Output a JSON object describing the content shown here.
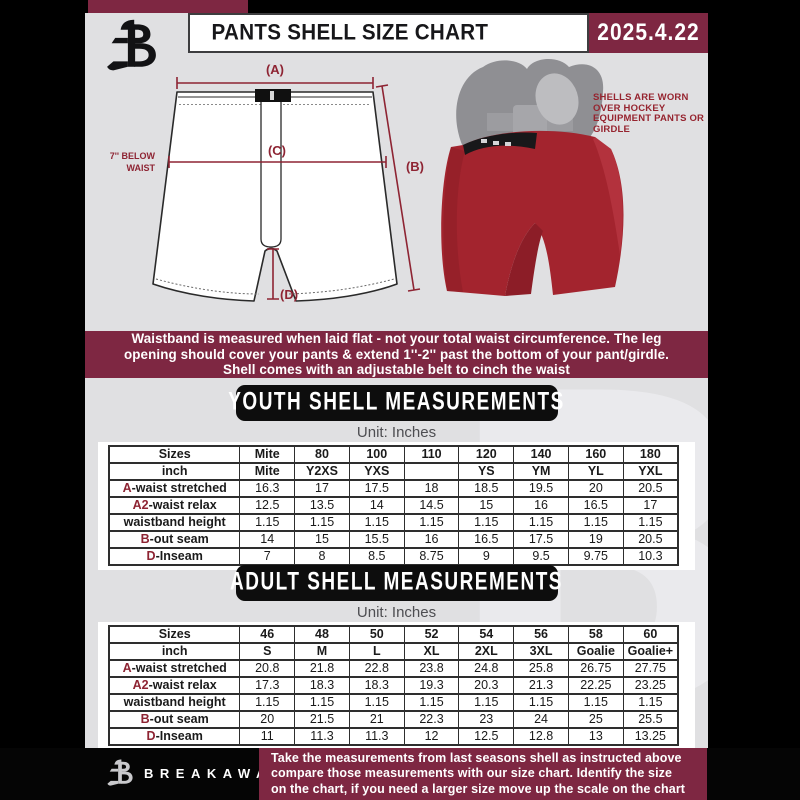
{
  "colors": {
    "maroon": "#7E2742",
    "accent_red": "#8E2433",
    "panel_gray": "#E0E0E2",
    "banner_black": "#0D0D0D",
    "shell_red": "#A3242E"
  },
  "header": {
    "title": "PANTS SHELL SIZE CHART",
    "date": "2025.4.22",
    "logo": "breakaway-b-logo"
  },
  "diagram": {
    "label_a": "(A)",
    "label_b": "(B)",
    "label_c": "(C)",
    "label_d": "(D)",
    "waist_note_line1": "7'' BELOW",
    "waist_note_line2": "WAIST"
  },
  "photo": {
    "caption": "SHELLS ARE WORN OVER HOCKEY EQUIPMENT PANTS OR GIRDLE"
  },
  "note_banner": {
    "line1": "Waistband is measured when laid flat - not your total waist circumference. The leg",
    "line2": "opening should cover your pants & extend 1''-2'' past the bottom of your pant/girdle.",
    "line3": "Shell comes with an adjustable belt to cinch the waist"
  },
  "youth": {
    "heading": "YOUTH SHELL MEASUREMENTS",
    "unit": "Unit: Inches",
    "rows": [
      {
        "header": true,
        "prefix": "",
        "label": "Sizes",
        "values": [
          "Mite",
          "80",
          "100",
          "110",
          "120",
          "140",
          "160",
          "180"
        ]
      },
      {
        "header": true,
        "prefix": "",
        "label": "inch",
        "values": [
          "Mite",
          "Y2XS",
          "YXS",
          "",
          "YS",
          "YM",
          "YL",
          "YXL"
        ]
      },
      {
        "header": false,
        "prefix": "A",
        "label": "-waist stretched",
        "values": [
          "16.3",
          "17",
          "17.5",
          "18",
          "18.5",
          "19.5",
          "20",
          "20.5"
        ]
      },
      {
        "header": false,
        "prefix": "A2",
        "label": "-waist relax",
        "values": [
          "12.5",
          "13.5",
          "14",
          "14.5",
          "15",
          "16",
          "16.5",
          "17"
        ]
      },
      {
        "header": false,
        "prefix": "",
        "label": "waistband height",
        "values": [
          "1.15",
          "1.15",
          "1.15",
          "1.15",
          "1.15",
          "1.15",
          "1.15",
          "1.15"
        ]
      },
      {
        "header": false,
        "prefix": "B",
        "label": "-out seam",
        "values": [
          "14",
          "15",
          "15.5",
          "16",
          "16.5",
          "17.5",
          "19",
          "20.5"
        ]
      },
      {
        "header": false,
        "prefix": "D",
        "label": "-Inseam",
        "values": [
          "7",
          "8",
          "8.5",
          "8.75",
          "9",
          "9.5",
          "9.75",
          "10.3"
        ]
      }
    ]
  },
  "adult": {
    "heading": "ADULT SHELL MEASUREMENTS",
    "unit": "Unit: Inches",
    "rows": [
      {
        "header": true,
        "prefix": "",
        "label": "Sizes",
        "values": [
          "46",
          "48",
          "50",
          "52",
          "54",
          "56",
          "58",
          "60"
        ]
      },
      {
        "header": true,
        "prefix": "",
        "label": "inch",
        "values": [
          "S",
          "M",
          "L",
          "XL",
          "2XL",
          "3XL",
          "Goalie",
          "Goalie+"
        ]
      },
      {
        "header": false,
        "prefix": "A",
        "label": "-waist stretched",
        "values": [
          "20.8",
          "21.8",
          "22.8",
          "23.8",
          "24.8",
          "25.8",
          "26.75",
          "27.75"
        ]
      },
      {
        "header": false,
        "prefix": "A2",
        "label": "-waist relax",
        "values": [
          "17.3",
          "18.3",
          "18.3",
          "19.3",
          "20.3",
          "21.3",
          "22.25",
          "23.25"
        ]
      },
      {
        "header": false,
        "prefix": "",
        "label": "waistband height",
        "values": [
          "1.15",
          "1.15",
          "1.15",
          "1.15",
          "1.15",
          "1.15",
          "1.15",
          "1.15"
        ]
      },
      {
        "header": false,
        "prefix": "B",
        "label": "-out seam",
        "values": [
          "20",
          "21.5",
          "21",
          "22.3",
          "23",
          "24",
          "25",
          "25.5"
        ]
      },
      {
        "header": false,
        "prefix": "D",
        "label": "-Inseam",
        "values": [
          "11",
          "11.3",
          "11.3",
          "12",
          "12.5",
          "12.8",
          "13",
          "13.25"
        ]
      }
    ]
  },
  "footer": {
    "brand": "BREAKAWAY",
    "line1": "Take the measurements from last seasons shell as instructed above",
    "line2": "compare those measurements  with our size chart. Identify the size",
    "line3": "on the chart, if you need a larger size move up the scale on the chart"
  }
}
